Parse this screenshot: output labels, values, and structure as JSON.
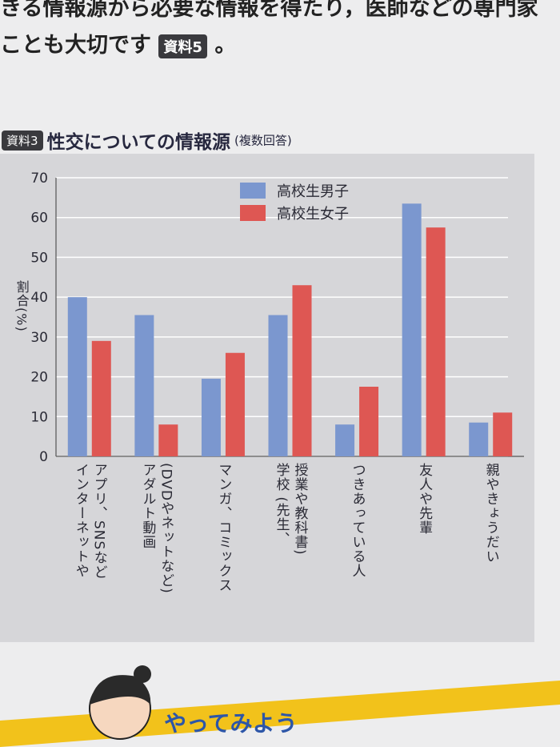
{
  "header": {
    "line1": "きる情報源から必要な情報を得たり，医師などの専門家",
    "line2": "ことも大切です",
    "badge": "資料5",
    "line2_end": "。"
  },
  "chart_data": {
    "type": "bar",
    "badge": "資料3",
    "title": "性交についての情報源",
    "subtitle": "(複数回答)",
    "ylabel": "割合(%)",
    "categories": [
      "インターネットや\nアプリ、SNSなど",
      "アダルト動画\n(DVDやネットなど)",
      "マンガ、コミックス",
      "学校 (先生、\n授業や教科書)",
      "つきあっている人",
      "友人や先輩",
      "親やきょうだい"
    ],
    "series": [
      {
        "name": "高校生男子",
        "color": "#7b97cf",
        "values": [
          40,
          35.5,
          19.5,
          35.5,
          8,
          63.5,
          8.5
        ]
      },
      {
        "name": "高校生女子",
        "color": "#de5753",
        "values": [
          29,
          8,
          26,
          43,
          17.5,
          57.5,
          11
        ]
      }
    ],
    "ylim": [
      0,
      70
    ],
    "yticks": [
      0,
      10,
      20,
      30,
      40,
      50,
      60,
      70
    ],
    "grid": true,
    "legend": "top-center"
  },
  "footer": {
    "activity": "やってみよう"
  }
}
